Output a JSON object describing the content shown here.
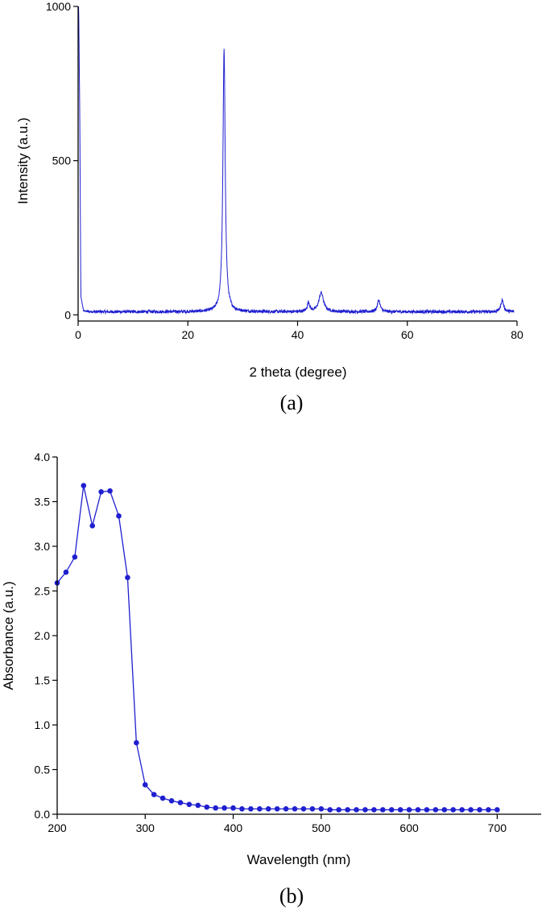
{
  "panel_a": {
    "caption": "(a)",
    "xlabel": "2 theta (degree)",
    "ylabel": "Intensity (a.u.)"
  },
  "panel_b": {
    "caption": "(b)",
    "xlabel": "Wavelength (nm)",
    "ylabel": "Absorbance (a.u.)"
  },
  "colors": {
    "series": "#1f1fd0",
    "axis": "#000000"
  },
  "chart_data": [
    {
      "type": "line",
      "xlabel": "2 theta (degree)",
      "ylabel": "Intensity (a.u.)",
      "xlim": [
        0,
        80
      ],
      "ylim": [
        -20,
        1000
      ],
      "xticks": [
        "0",
        "20",
        "40",
        "60",
        "80"
      ],
      "yticks": [
        "0",
        "500",
        "1000"
      ],
      "xtick_values": [
        0,
        20,
        40,
        60,
        80
      ],
      "ytick_values": [
        0,
        500,
        1000
      ],
      "grid": false,
      "baseline": 10,
      "noise_amplitude": 5,
      "low_angle_decay": [
        {
          "x": 0.1,
          "y": 1000
        },
        {
          "x": 0.3,
          "y": 650
        },
        {
          "x": 0.5,
          "y": 60
        },
        {
          "x": 1.0,
          "y": 12
        },
        {
          "x": 3.0,
          "y": 6
        }
      ],
      "peaks": [
        {
          "x": 26.6,
          "y": 860,
          "width": 0.25
        },
        {
          "x": 42.0,
          "y": 40,
          "width": 0.25
        },
        {
          "x": 44.3,
          "y": 72,
          "width": 0.5
        },
        {
          "x": 54.8,
          "y": 48,
          "width": 0.3
        },
        {
          "x": 77.3,
          "y": 48,
          "width": 0.3
        }
      ]
    },
    {
      "type": "line",
      "markers": true,
      "xlabel": "Wavelength (nm)",
      "ylabel": "Absorbance (a.u.)",
      "xlim": [
        200,
        750
      ],
      "ylim": [
        0,
        4.0
      ],
      "xticks": [
        "200",
        "300",
        "400",
        "500",
        "600",
        "700"
      ],
      "yticks": [
        "0.0",
        "0.5",
        "1.0",
        "1.5",
        "2.0",
        "2.5",
        "3.0",
        "3.5",
        "4.0"
      ],
      "xtick_values": [
        200,
        300,
        400,
        500,
        600,
        700
      ],
      "ytick_values": [
        0,
        0.5,
        1.0,
        1.5,
        2.0,
        2.5,
        3.0,
        3.5,
        4.0
      ],
      "grid": false,
      "x": [
        200,
        210,
        220,
        230,
        240,
        250,
        260,
        270,
        280,
        290,
        300,
        310,
        320,
        330,
        340,
        350,
        360,
        370,
        380,
        390,
        400,
        410,
        420,
        430,
        440,
        450,
        460,
        470,
        480,
        490,
        500,
        510,
        520,
        530,
        540,
        550,
        560,
        570,
        580,
        590,
        600,
        610,
        620,
        630,
        640,
        650,
        660,
        670,
        680,
        690,
        700
      ],
      "y": [
        2.59,
        2.71,
        2.88,
        3.68,
        3.23,
        3.61,
        3.62,
        3.34,
        2.65,
        0.8,
        0.33,
        0.22,
        0.18,
        0.15,
        0.13,
        0.11,
        0.1,
        0.08,
        0.07,
        0.07,
        0.07,
        0.06,
        0.06,
        0.06,
        0.06,
        0.06,
        0.06,
        0.06,
        0.06,
        0.06,
        0.06,
        0.05,
        0.05,
        0.05,
        0.05,
        0.05,
        0.05,
        0.05,
        0.05,
        0.05,
        0.05,
        0.05,
        0.05,
        0.05,
        0.05,
        0.05,
        0.05,
        0.05,
        0.05,
        0.05,
        0.05
      ]
    }
  ]
}
